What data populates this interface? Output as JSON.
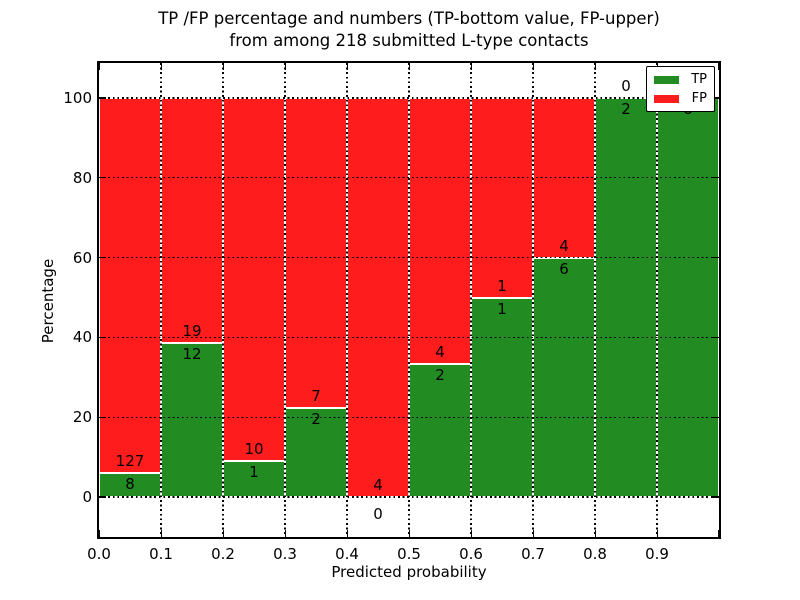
{
  "chart_data": {
    "type": "bar",
    "stacked": true,
    "normalized_to_percent": true,
    "title": "TP /FP percentage and numbers (TP-bottom value, FP-upper)",
    "subtitle": "from among 218 submitted L-type contacts",
    "xlabel": "Predicted probability",
    "ylabel": "Percentage",
    "total_contacts": "218",
    "categories": [
      "0.0-0.1",
      "0.1-0.2",
      "0.2-0.3",
      "0.3-0.4",
      "0.4-0.5",
      "0.5-0.6",
      "0.6-0.7",
      "0.7-0.8",
      "0.8-0.9",
      "0.9-1.0"
    ],
    "bin_width": 0.1,
    "series": [
      {
        "name": "TP",
        "color": "#228b22",
        "values": [
          8,
          12,
          1,
          2,
          0,
          2,
          1,
          6,
          2,
          8
        ]
      },
      {
        "name": "FP",
        "color": "#ff1c1c",
        "values": [
          127,
          19,
          10,
          7,
          4,
          4,
          1,
          4,
          0,
          0
        ]
      }
    ],
    "tp_percent": [
      5.9,
      38.7,
      9.1,
      22.2,
      0.0,
      33.3,
      50.0,
      60.0,
      100.0,
      100.0
    ],
    "x_tick_labels": [
      "0.0",
      "0.1",
      "0.2",
      "0.3",
      "0.4",
      "0.5",
      "0.6",
      "0.7",
      "0.8",
      "0.9"
    ],
    "y_tick_labels": [
      "0",
      "20",
      "40",
      "60",
      "80",
      "100"
    ],
    "y_tick_values": [
      0,
      20,
      40,
      60,
      80,
      100
    ],
    "xlim": [
      0.0,
      1.0
    ],
    "ylim": [
      -10.5,
      109.0
    ],
    "grid": "dotted",
    "legend": {
      "position": "upper right",
      "entries": [
        {
          "label": "TP",
          "color": "#228b22"
        },
        {
          "label": "FP",
          "color": "#ff1c1c"
        }
      ]
    }
  }
}
